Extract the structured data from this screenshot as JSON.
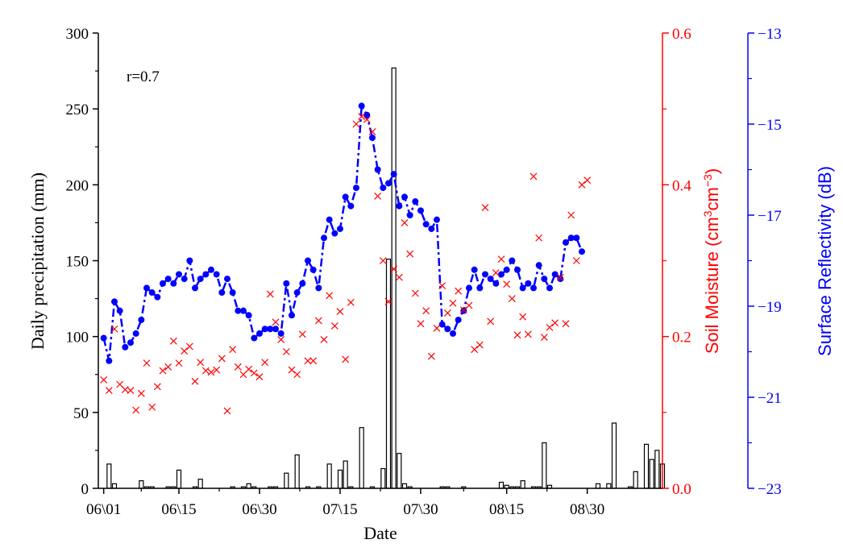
{
  "chart_data": {
    "type": "bar+line+scatter",
    "annotation": "r=0.7",
    "xlabel": "Date",
    "x_ticks": [
      "06\\01",
      "06\\15",
      "06\\30",
      "07\\15",
      "07\\30",
      "08\\15",
      "08\\30"
    ],
    "x_tick_days": [
      1,
      15,
      30,
      45,
      60,
      76,
      91
    ],
    "xlim": [
      0,
      105
    ],
    "grid": false,
    "axes": {
      "precipitation": {
        "label": "Daily precipitation (mm)",
        "ylim": [
          0,
          300
        ],
        "ticks": [
          "0",
          "50",
          "100",
          "150",
          "200",
          "250",
          "300"
        ],
        "color": "#000000"
      },
      "soil_moisture": {
        "label_main": "Soil Moisture (cm",
        "label_sup1": "3",
        "label_mid": "cm",
        "label_sup2": "−3",
        "label_end": ")",
        "ylim": [
          0,
          0.6
        ],
        "ticks": [
          "0.0",
          "0.2",
          "0.4",
          "0.6"
        ],
        "color": "#ff0000"
      },
      "surface_reflectivity": {
        "label": "Surface Reflectivity (dB)",
        "ylim": [
          -23,
          -13
        ],
        "ticks": [
          "−23",
          "−21",
          "−19",
          "−17",
          "−15",
          "−13"
        ],
        "color": "#0000ff"
      }
    },
    "series": [
      {
        "kind": "bar",
        "axis": "precipitation",
        "values": [
          [
            2,
            16
          ],
          [
            3,
            3
          ],
          [
            8,
            5
          ],
          [
            9,
            1
          ],
          [
            10,
            1
          ],
          [
            13,
            1
          ],
          [
            14,
            1
          ],
          [
            15,
            12
          ],
          [
            18,
            1
          ],
          [
            19,
            6
          ],
          [
            25,
            1
          ],
          [
            27,
            1
          ],
          [
            28,
            3
          ],
          [
            29,
            1
          ],
          [
            32,
            1
          ],
          [
            33,
            1
          ],
          [
            35,
            10
          ],
          [
            37,
            22
          ],
          [
            39,
            1
          ],
          [
            41,
            1
          ],
          [
            43,
            16
          ],
          [
            45,
            12
          ],
          [
            46,
            18
          ],
          [
            47,
            1
          ],
          [
            49,
            40
          ],
          [
            51,
            1
          ],
          [
            53,
            13
          ],
          [
            54,
            151
          ],
          [
            55,
            277
          ],
          [
            56,
            23
          ],
          [
            57,
            3
          ],
          [
            58,
            1
          ],
          [
            64,
            1
          ],
          [
            65,
            1
          ],
          [
            68,
            1
          ],
          [
            75,
            4
          ],
          [
            76,
            2
          ],
          [
            77,
            1
          ],
          [
            78,
            1
          ],
          [
            79,
            5
          ],
          [
            81,
            1
          ],
          [
            82,
            1
          ],
          [
            83,
            30
          ],
          [
            84,
            2
          ],
          [
            93,
            3
          ],
          [
            95,
            3
          ],
          [
            96,
            43
          ],
          [
            99,
            1
          ],
          [
            100,
            11
          ],
          [
            102,
            29
          ],
          [
            103,
            19
          ],
          [
            104,
            25
          ],
          [
            105,
            16
          ]
        ]
      },
      {
        "kind": "scatter",
        "marker": "x",
        "axis": "soil_moisture",
        "values": [
          [
            1,
            0.143
          ],
          [
            2,
            0.129
          ],
          [
            3,
            0.21
          ],
          [
            4,
            0.137
          ],
          [
            5,
            0.13
          ],
          [
            6,
            0.129
          ],
          [
            7,
            0.103
          ],
          [
            8,
            0.125
          ],
          [
            9,
            0.165
          ],
          [
            10,
            0.107
          ],
          [
            11,
            0.134
          ],
          [
            12,
            0.155
          ],
          [
            13,
            0.16
          ],
          [
            14,
            0.194
          ],
          [
            15,
            0.165
          ],
          [
            16,
            0.181
          ],
          [
            17,
            0.187
          ],
          [
            18,
            0.141
          ],
          [
            19,
            0.166
          ],
          [
            20,
            0.155
          ],
          [
            21,
            0.153
          ],
          [
            22,
            0.156
          ],
          [
            23,
            0.171
          ],
          [
            24,
            0.102
          ],
          [
            25,
            0.183
          ],
          [
            26,
            0.16
          ],
          [
            27,
            0.15
          ],
          [
            28,
            0.157
          ],
          [
            29,
            0.152
          ],
          [
            30,
            0.147
          ],
          [
            31,
            0.166
          ],
          [
            32,
            0.256
          ],
          [
            33,
            0.219
          ],
          [
            34,
            0.196
          ],
          [
            35,
            0.18
          ],
          [
            36,
            0.156
          ],
          [
            37,
            0.15
          ],
          [
            38,
            0.203
          ],
          [
            39,
            0.168
          ],
          [
            40,
            0.168
          ],
          [
            41,
            0.221
          ],
          [
            42,
            0.196
          ],
          [
            43,
            0.254
          ],
          [
            44,
            0.214
          ],
          [
            45,
            0.233
          ],
          [
            46,
            0.17
          ],
          [
            47,
            0.245
          ],
          [
            48,
            0.48
          ],
          [
            49,
            0.49
          ],
          [
            50,
            0.486
          ],
          [
            51,
            0.47
          ],
          [
            52,
            0.385
          ],
          [
            53,
            0.3
          ],
          [
            54,
            0.246
          ],
          [
            55,
            0.289
          ],
          [
            56,
            0.278
          ],
          [
            57,
            0.35
          ],
          [
            58,
            0.309
          ],
          [
            59,
            0.257
          ],
          [
            60,
            0.217
          ],
          [
            61,
            0.234
          ],
          [
            62,
            0.174
          ],
          [
            63,
            0.211
          ],
          [
            64,
            0.267
          ],
          [
            65,
            0.231
          ],
          [
            66,
            0.244
          ],
          [
            67,
            0.26
          ],
          [
            68,
            0.235
          ],
          [
            69,
            0.241
          ],
          [
            70,
            0.183
          ],
          [
            71,
            0.189
          ],
          [
            72,
            0.37
          ],
          [
            73,
            0.22
          ],
          [
            74,
            0.284
          ],
          [
            75,
            0.302
          ],
          [
            76,
            0.269
          ],
          [
            77,
            0.25
          ],
          [
            78,
            0.202
          ],
          [
            79,
            0.226
          ],
          [
            80,
            0.203
          ],
          [
            81,
            0.411
          ],
          [
            82,
            0.33
          ],
          [
            83,
            0.199
          ],
          [
            84,
            0.212
          ],
          [
            85,
            0.218
          ],
          [
            86,
            0.278
          ],
          [
            87,
            0.217
          ],
          [
            88,
            0.36
          ],
          [
            89,
            0.3
          ],
          [
            90,
            0.4
          ],
          [
            91,
            0.406
          ]
        ]
      },
      {
        "kind": "line",
        "style": "dash-dot",
        "marker": "circle",
        "axis": "surface_reflectivity",
        "values": [
          [
            1,
            -19.7
          ],
          [
            2,
            -20.2
          ],
          [
            3,
            -18.9
          ],
          [
            4,
            -19.1
          ],
          [
            5,
            -19.9
          ],
          [
            6,
            -19.8
          ],
          [
            7,
            -19.6
          ],
          [
            8,
            -19.3
          ],
          [
            9,
            -18.6
          ],
          [
            10,
            -18.7
          ],
          [
            11,
            -18.8
          ],
          [
            12,
            -18.5
          ],
          [
            13,
            -18.4
          ],
          [
            14,
            -18.5
          ],
          [
            15,
            -18.3
          ],
          [
            16,
            -18.4
          ],
          [
            17,
            -18.0
          ],
          [
            18,
            -18.6
          ],
          [
            19,
            -18.4
          ],
          [
            20,
            -18.3
          ],
          [
            21,
            -18.2
          ],
          [
            22,
            -18.3
          ],
          [
            23,
            -18.7
          ],
          [
            24,
            -18.4
          ],
          [
            25,
            -18.7
          ],
          [
            26,
            -19.1
          ],
          [
            27,
            -19.1
          ],
          [
            28,
            -19.2
          ],
          [
            29,
            -19.7
          ],
          [
            30,
            -19.6
          ],
          [
            31,
            -19.5
          ],
          [
            32,
            -19.5
          ],
          [
            33,
            -19.5
          ],
          [
            34,
            -19.6
          ],
          [
            35,
            -18.5
          ],
          [
            36,
            -19.2
          ],
          [
            37,
            -18.7
          ],
          [
            38,
            -18.5
          ],
          [
            39,
            -18.0
          ],
          [
            40,
            -18.2
          ],
          [
            41,
            -18.6
          ],
          [
            42,
            -17.5
          ],
          [
            43,
            -17.1
          ],
          [
            44,
            -17.4
          ],
          [
            45,
            -17.3
          ],
          [
            46,
            -16.6
          ],
          [
            47,
            -16.8
          ],
          [
            48,
            -16.4
          ],
          [
            49,
            -14.6
          ],
          [
            50,
            -14.8
          ],
          [
            51,
            -15.3
          ],
          [
            52,
            -16.0
          ],
          [
            53,
            -16.4
          ],
          [
            54,
            -16.3
          ],
          [
            55,
            -16.1
          ],
          [
            56,
            -16.8
          ],
          [
            57,
            -16.6
          ],
          [
            58,
            -17.0
          ],
          [
            59,
            -16.7
          ],
          [
            60,
            -16.9
          ],
          [
            61,
            -17.2
          ],
          [
            62,
            -17.3
          ],
          [
            63,
            -17.1
          ],
          [
            64,
            -19.4
          ],
          [
            65,
            -19.5
          ],
          [
            66,
            -19.6
          ],
          [
            67,
            -19.3
          ],
          [
            68,
            -19.1
          ],
          [
            69,
            -18.6
          ],
          [
            70,
            -18.2
          ],
          [
            71,
            -18.6
          ],
          [
            72,
            -18.3
          ],
          [
            73,
            -18.4
          ],
          [
            74,
            -18.5
          ],
          [
            75,
            -18.3
          ],
          [
            76,
            -18.2
          ],
          [
            77,
            -18.0
          ],
          [
            78,
            -18.2
          ],
          [
            79,
            -18.6
          ],
          [
            80,
            -18.5
          ],
          [
            81,
            -18.6
          ],
          [
            82,
            -18.1
          ],
          [
            83,
            -18.4
          ],
          [
            84,
            -18.6
          ],
          [
            85,
            -18.3
          ],
          [
            86,
            -18.4
          ],
          [
            87,
            -17.6
          ],
          [
            88,
            -17.5
          ],
          [
            89,
            -17.5
          ],
          [
            90,
            -17.8
          ]
        ]
      }
    ]
  }
}
